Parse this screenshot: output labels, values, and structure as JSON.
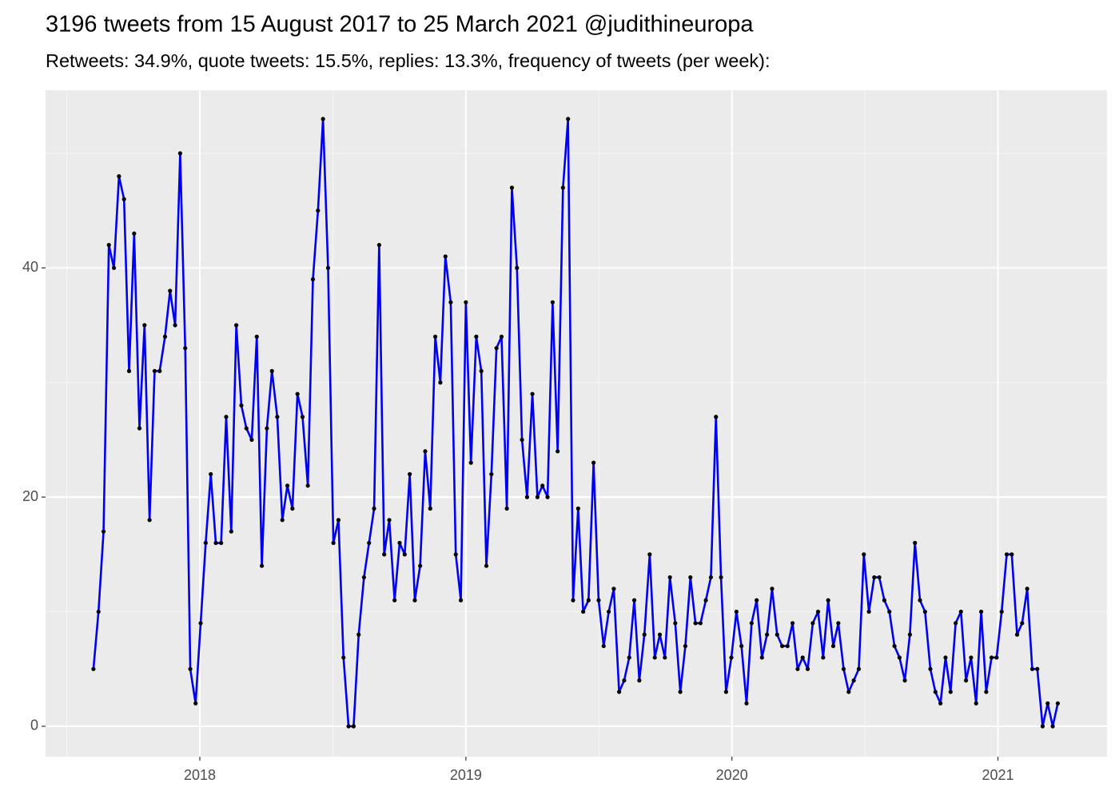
{
  "chart_data": {
    "type": "line",
    "title": "3196 tweets from 15 August 2017 to 25 March 2021 @judithineuropa",
    "subtitle": "Retweets: 34.9%, quote tweets: 15.5%, replies: 13.3%, frequency of tweets (per week):",
    "x": [
      2017.6,
      2017.619,
      2017.638,
      2017.658,
      2017.677,
      2017.696,
      2017.715,
      2017.734,
      2017.753,
      2017.773,
      2017.792,
      2017.811,
      2017.83,
      2017.849,
      2017.869,
      2017.888,
      2017.907,
      2017.926,
      2017.945,
      2017.964,
      2017.984,
      2018.003,
      2018.022,
      2018.041,
      2018.06,
      2018.08,
      2018.099,
      2018.118,
      2018.137,
      2018.156,
      2018.175,
      2018.195,
      2018.214,
      2018.233,
      2018.252,
      2018.271,
      2018.291,
      2018.31,
      2018.329,
      2018.348,
      2018.367,
      2018.386,
      2018.406,
      2018.425,
      2018.444,
      2018.463,
      2018.482,
      2018.502,
      2018.521,
      2018.54,
      2018.559,
      2018.578,
      2018.597,
      2018.617,
      2018.636,
      2018.655,
      2018.674,
      2018.693,
      2018.712,
      2018.732,
      2018.751,
      2018.77,
      2018.789,
      2018.808,
      2018.828,
      2018.847,
      2018.866,
      2018.885,
      2018.904,
      2018.923,
      2018.943,
      2018.962,
      2018.981,
      2019.0,
      2019.019,
      2019.039,
      2019.058,
      2019.077,
      2019.096,
      2019.115,
      2019.134,
      2019.154,
      2019.173,
      2019.192,
      2019.211,
      2019.23,
      2019.25,
      2019.269,
      2019.288,
      2019.307,
      2019.326,
      2019.345,
      2019.365,
      2019.384,
      2019.403,
      2019.422,
      2019.441,
      2019.461,
      2019.48,
      2019.499,
      2019.518,
      2019.537,
      2019.556,
      2019.576,
      2019.595,
      2019.614,
      2019.633,
      2019.652,
      2019.671,
      2019.691,
      2019.71,
      2019.729,
      2019.748,
      2019.767,
      2019.787,
      2019.806,
      2019.825,
      2019.844,
      2019.863,
      2019.882,
      2019.902,
      2019.921,
      2019.94,
      2019.959,
      2019.978,
      2019.998,
      2020.017,
      2020.036,
      2020.055,
      2020.074,
      2020.093,
      2020.113,
      2020.132,
      2020.151,
      2020.17,
      2020.189,
      2020.209,
      2020.228,
      2020.247,
      2020.266,
      2020.285,
      2020.304,
      2020.324,
      2020.343,
      2020.362,
      2020.381,
      2020.4,
      2020.42,
      2020.439,
      2020.458,
      2020.477,
      2020.496,
      2020.515,
      2020.535,
      2020.554,
      2020.573,
      2020.592,
      2020.611,
      2020.63,
      2020.65,
      2020.669,
      2020.688,
      2020.707,
      2020.726,
      2020.746,
      2020.765,
      2020.784,
      2020.803,
      2020.822,
      2020.841,
      2020.861,
      2020.88,
      2020.899,
      2020.918,
      2020.937,
      2020.956,
      2020.976,
      2020.995,
      2021.014,
      2021.033,
      2021.052,
      2021.072,
      2021.091,
      2021.11,
      2021.129,
      2021.148,
      2021.168,
      2021.187,
      2021.206,
      2021.225
    ],
    "series": [
      {
        "color": "#0000ee",
        "point_color": "#000000",
        "values": [
          5,
          10,
          17,
          42,
          40,
          48,
          46,
          31,
          43,
          26,
          35,
          18,
          31,
          31,
          34,
          38,
          35,
          50,
          33,
          5,
          2,
          9,
          16,
          22,
          16,
          16,
          27,
          17,
          35,
          28,
          26,
          25,
          34,
          14,
          26,
          31,
          27,
          18,
          21,
          19,
          29,
          27,
          21,
          39,
          45,
          53,
          40,
          16,
          18,
          6,
          0,
          0,
          8,
          13,
          16,
          19,
          42,
          15,
          18,
          11,
          16,
          15,
          22,
          11,
          14,
          24,
          19,
          34,
          30,
          41,
          37,
          15,
          11,
          37,
          23,
          34,
          31,
          14,
          22,
          33,
          34,
          19,
          47,
          40,
          25,
          20,
          29,
          20,
          21,
          20,
          37,
          24,
          47,
          53,
          11,
          19,
          10,
          11,
          23,
          11,
          7,
          10,
          12,
          3,
          4,
          6,
          11,
          4,
          8,
          15,
          6,
          8,
          6,
          13,
          9,
          3,
          7,
          13,
          9,
          9,
          11,
          13,
          27,
          13,
          3,
          6,
          10,
          7,
          2,
          9,
          11,
          6,
          8,
          12,
          8,
          7,
          7,
          9,
          5,
          6,
          5,
          9,
          10,
          6,
          11,
          7,
          9,
          5,
          3,
          4,
          5,
          15,
          10,
          13,
          13,
          11,
          10,
          7,
          6,
          4,
          8,
          16,
          11,
          10,
          5,
          3,
          2,
          6,
          3,
          9,
          10,
          4,
          6,
          2,
          10,
          3,
          6,
          6,
          10,
          15,
          15,
          8,
          9,
          12,
          5,
          5,
          0,
          2,
          0,
          2
        ]
      }
    ],
    "xlim": [
      2017.42,
      2021.41
    ],
    "xticks": [
      2018,
      2019,
      2020,
      2021
    ],
    "ylim": [
      -2.65,
      55.5
    ],
    "yticks": [
      0,
      20,
      40
    ],
    "grid": true,
    "minor_grid": true
  }
}
